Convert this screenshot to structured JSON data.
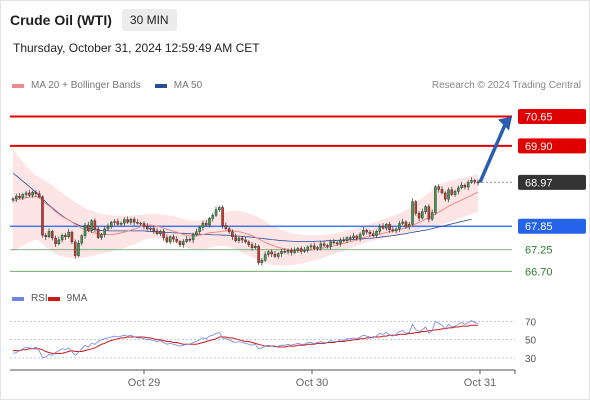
{
  "header": {
    "title": "Crude Oil (WTI)",
    "interval": "30 MIN"
  },
  "datetime": "Thursday, October 31, 2024 12:59:49 AM CET",
  "legend": {
    "ma20": "MA 20 + Bollinger Bands",
    "ma50": "MA 50"
  },
  "credit": "Research © 2024 Trading Central",
  "rsi_legend": {
    "rsi": "RSI",
    "ma": "9MA"
  },
  "colors": {
    "resistance": "#e00000",
    "support": "#2563eb",
    "support_minor": "#5aa05a",
    "last_price": "#333333",
    "ma20": "#f08a8a",
    "ma50": "#2a4d9a",
    "rsi": "#6f84e0",
    "rsi_ma": "#d01818",
    "bollinger": "#fde2e2",
    "target_arrow": "#2a5db0"
  },
  "chart_data": [
    {
      "type": "candlestick",
      "ylim": [
        66.35,
        71.2
      ],
      "x_ticks": [
        "Oct 29",
        "Oct 30",
        "Oct 31"
      ],
      "levels": [
        {
          "value": 70.65,
          "label": "70.65",
          "kind": "resistance"
        },
        {
          "value": 69.9,
          "label": "69.90",
          "kind": "resistance"
        },
        {
          "value": 68.97,
          "label": "68.97",
          "kind": "last_price"
        },
        {
          "value": 67.85,
          "label": "67.85",
          "kind": "support"
        },
        {
          "value": 67.25,
          "label": "67.25",
          "kind": "support_minor"
        },
        {
          "value": 66.7,
          "label": "66.70",
          "kind": "support_minor"
        }
      ],
      "close": [
        68.55,
        68.62,
        68.58,
        68.66,
        68.7,
        68.64,
        68.72,
        68.68,
        68.6,
        67.62,
        67.58,
        67.72,
        67.55,
        67.4,
        67.5,
        67.62,
        67.58,
        67.7,
        67.45,
        67.1,
        67.42,
        67.61,
        67.88,
        67.74,
        67.99,
        67.78,
        67.56,
        67.64,
        67.78,
        67.84,
        67.95,
        67.97,
        67.9,
        67.93,
        68.02,
        67.95,
        68.03,
        67.95,
        67.93,
        67.92,
        67.85,
        67.78,
        67.8,
        67.73,
        67.66,
        67.72,
        67.56,
        67.45,
        67.58,
        67.52,
        67.46,
        67.38,
        67.46,
        67.52,
        67.5,
        67.63,
        67.71,
        67.82,
        67.93,
        67.88,
        68.05,
        68.13,
        68.27,
        68.33,
        67.87,
        67.79,
        67.71,
        67.58,
        67.48,
        67.55,
        67.5,
        67.45,
        67.38,
        67.3,
        67.34,
        66.92,
        66.98,
        67.13,
        67.2,
        67.14,
        67.08,
        67.15,
        67.21,
        67.19,
        67.24,
        67.18,
        67.23,
        67.28,
        67.21,
        67.24,
        67.32,
        67.35,
        67.28,
        67.31,
        67.4,
        67.36,
        67.34,
        67.45,
        67.43,
        67.41,
        67.5,
        67.48,
        67.56,
        67.55,
        67.6,
        67.54,
        67.64,
        67.75,
        67.7,
        67.66,
        67.61,
        67.72,
        67.85,
        67.8,
        67.9,
        67.76,
        67.73,
        67.78,
        67.92,
        67.96,
        67.84,
        67.9,
        68.48,
        68.18,
        68.06,
        68.22,
        68.35,
        68.03,
        68.2,
        68.86,
        68.79,
        68.7,
        68.54,
        68.78,
        68.66,
        68.74,
        68.83,
        68.9,
        68.85,
        68.97,
        69.02,
        68.98,
        68.97
      ],
      "ma20": [
        68.5,
        68.52,
        68.54,
        68.56,
        68.58,
        68.59,
        68.6,
        68.61,
        68.58,
        68.5,
        68.43,
        68.37,
        68.3,
        68.22,
        68.16,
        68.1,
        68.05,
        68.01,
        67.96,
        67.9,
        67.85,
        67.8,
        67.76,
        67.73,
        67.7,
        67.68,
        67.66,
        67.65,
        67.64,
        67.64,
        67.64,
        67.65,
        67.66,
        67.68,
        67.7,
        67.72,
        67.75,
        67.78,
        67.8,
        67.84,
        67.87,
        67.88,
        67.88,
        67.87,
        67.85,
        67.83,
        67.8,
        67.77,
        67.75,
        67.72,
        67.7,
        67.67,
        67.64,
        67.62,
        67.6,
        67.6,
        67.6,
        67.62,
        67.64,
        67.66,
        67.68,
        67.69,
        67.7,
        67.71,
        67.72,
        67.73,
        67.74,
        67.73,
        67.72,
        67.71,
        67.69,
        67.67,
        67.64,
        67.61,
        67.57,
        67.53,
        67.48,
        67.44,
        67.4,
        67.37,
        67.34,
        67.31,
        67.29,
        67.27,
        67.25,
        67.24,
        67.23,
        67.22,
        67.22,
        67.22,
        67.23,
        67.24,
        67.25,
        67.26,
        67.28,
        67.3,
        67.31,
        67.33,
        67.35,
        67.37,
        67.39,
        67.41,
        67.44,
        67.46,
        67.48,
        67.51,
        67.53,
        67.56,
        67.58,
        67.6,
        67.62,
        67.63,
        67.65,
        67.67,
        67.69,
        67.71,
        67.73,
        67.75,
        67.77,
        67.79,
        67.81,
        67.83,
        67.87,
        67.91,
        67.95,
        67.99,
        68.03,
        68.07,
        68.11,
        68.16,
        68.21,
        68.26,
        68.31,
        68.36,
        68.4,
        68.44,
        68.48,
        68.52,
        68.56,
        68.6,
        68.64,
        68.68,
        68.72
      ],
      "bb_upper": [
        69.8,
        69.7,
        69.6,
        69.5,
        69.4,
        69.31,
        69.22,
        69.15,
        69.1,
        69.05,
        69.0,
        68.95,
        68.9,
        68.83,
        68.76,
        68.7,
        68.64,
        68.58,
        68.52,
        68.46,
        68.41,
        68.36,
        68.32,
        68.28,
        68.25,
        68.22,
        68.19,
        68.17,
        68.15,
        68.14,
        68.13,
        68.12,
        68.12,
        68.12,
        68.12,
        68.12,
        68.12,
        68.13,
        68.13,
        68.14,
        68.15,
        68.16,
        68.17,
        68.17,
        68.17,
        68.16,
        68.15,
        68.14,
        68.12,
        68.1,
        68.08,
        68.06,
        68.04,
        68.02,
        68.0,
        67.99,
        67.99,
        68.0,
        68.02,
        68.04,
        68.07,
        68.1,
        68.13,
        68.17,
        68.2,
        68.22,
        68.24,
        68.25,
        68.25,
        68.24,
        68.23,
        68.21,
        68.18,
        68.15,
        68.12,
        68.08,
        68.03,
        67.98,
        67.93,
        67.88,
        67.84,
        67.8,
        67.76,
        67.73,
        67.7,
        67.68,
        67.66,
        67.65,
        67.64,
        67.63,
        67.62,
        67.62,
        67.62,
        67.62,
        67.62,
        67.63,
        67.64,
        67.65,
        67.66,
        67.68,
        67.7,
        67.72,
        67.74,
        67.76,
        67.78,
        67.8,
        67.82,
        67.85,
        67.88,
        67.91,
        67.94,
        67.97,
        68.0,
        68.03,
        68.06,
        68.09,
        68.12,
        68.15,
        68.18,
        68.22,
        68.26,
        68.31,
        68.38,
        68.45,
        68.52,
        68.58,
        68.64,
        68.7,
        68.76,
        68.84,
        68.9,
        68.94,
        68.97,
        69.0,
        69.02,
        69.04,
        69.06,
        69.08,
        69.1,
        69.12,
        69.14,
        69.16,
        69.18
      ],
      "bb_lower": [
        67.2,
        67.25,
        67.3,
        67.35,
        67.4,
        67.44,
        67.48,
        67.5,
        67.48,
        67.4,
        67.32,
        67.26,
        67.2,
        67.14,
        67.1,
        67.08,
        67.06,
        67.05,
        67.04,
        67.03,
        67.03,
        67.04,
        67.05,
        67.07,
        67.09,
        67.11,
        67.13,
        67.15,
        67.17,
        67.19,
        67.21,
        67.23,
        67.25,
        67.27,
        67.3,
        67.33,
        67.36,
        67.39,
        67.42,
        67.46,
        67.5,
        67.52,
        67.53,
        67.54,
        67.54,
        67.53,
        67.51,
        67.48,
        67.45,
        67.42,
        67.39,
        67.36,
        67.33,
        67.3,
        67.28,
        67.27,
        67.26,
        67.26,
        67.27,
        67.28,
        67.3,
        67.32,
        67.34,
        67.35,
        67.35,
        67.34,
        67.32,
        67.29,
        67.26,
        67.22,
        67.18,
        67.14,
        67.1,
        67.06,
        67.02,
        66.98,
        66.94,
        66.91,
        66.88,
        66.86,
        66.85,
        66.84,
        66.84,
        66.84,
        66.85,
        66.86,
        66.87,
        66.88,
        66.9,
        66.92,
        66.94,
        66.96,
        66.98,
        67.0,
        67.02,
        67.05,
        67.08,
        67.11,
        67.14,
        67.17,
        67.2,
        67.23,
        67.26,
        67.29,
        67.32,
        67.35,
        67.38,
        67.41,
        67.44,
        67.46,
        67.48,
        67.5,
        67.52,
        67.54,
        67.56,
        67.58,
        67.6,
        67.62,
        67.64,
        67.66,
        67.68,
        67.7,
        67.72,
        67.74,
        67.76,
        67.78,
        67.8,
        67.82,
        67.84,
        67.86,
        67.88,
        67.9,
        67.92,
        67.95,
        67.98,
        68.01,
        68.04,
        68.07,
        68.1,
        68.13,
        68.16,
        68.19,
        68.22
      ],
      "ma50": [
        69.2,
        69.14,
        69.07,
        69.0,
        68.93,
        68.86,
        68.79,
        68.71,
        68.63,
        68.55,
        68.47,
        68.39,
        68.32,
        68.25,
        68.18,
        68.12,
        68.06,
        68.01,
        67.96,
        67.92,
        67.88,
        67.85,
        67.82,
        67.8,
        67.78,
        67.76,
        67.75,
        67.74,
        67.74,
        67.73,
        67.73,
        67.73,
        67.73,
        67.73,
        67.73,
        67.73,
        67.73,
        67.73,
        67.73,
        67.73,
        67.73,
        67.72,
        67.72,
        67.71,
        67.71,
        67.7,
        67.7,
        67.69,
        67.69,
        67.68,
        67.68,
        67.67,
        67.67,
        67.66,
        67.66,
        67.65,
        67.65,
        67.65,
        67.64,
        67.64,
        67.64,
        67.63,
        67.63,
        67.63,
        67.62,
        67.62,
        67.61,
        67.61,
        67.6,
        67.6,
        67.59,
        67.58,
        67.58,
        67.57,
        67.56,
        67.55,
        67.54,
        67.53,
        67.52,
        67.51,
        67.5,
        67.49,
        67.48,
        67.48,
        67.47,
        67.47,
        67.46,
        67.46,
        67.46,
        67.46,
        67.46,
        67.46,
        67.46,
        67.47,
        67.47,
        67.47,
        67.48,
        67.48,
        67.48,
        67.49,
        67.49,
        67.5,
        67.5,
        67.51,
        67.51,
        67.52,
        67.52,
        67.53,
        67.54,
        67.54,
        67.55,
        67.56,
        67.57,
        67.58,
        67.59,
        67.6,
        67.61,
        67.62,
        67.64,
        67.65,
        67.66,
        67.68,
        67.69,
        67.71,
        67.72,
        67.74,
        67.75,
        67.77,
        67.79,
        67.81,
        67.83,
        67.85,
        67.87,
        67.89,
        67.91,
        67.93,
        67.95,
        67.97,
        67.99,
        68.01,
        68.03
      ]
    },
    {
      "type": "line",
      "y_ticks": [
        70,
        50,
        30
      ],
      "ylim": [
        20,
        75
      ],
      "rsi": [
        35,
        36,
        38,
        40,
        42,
        41,
        40,
        42,
        38,
        30,
        31,
        34,
        33,
        36,
        38,
        40,
        39,
        41,
        37,
        33,
        36,
        40,
        44,
        42,
        46,
        45,
        48,
        50,
        51,
        52,
        53,
        54,
        53,
        54,
        55,
        54,
        55,
        53,
        52,
        52,
        51,
        50,
        50,
        49,
        48,
        49,
        47,
        45,
        46,
        45,
        44,
        43,
        44,
        45,
        45,
        47,
        48,
        50,
        52,
        51,
        54,
        55,
        57,
        58,
        52,
        51,
        50,
        48,
        47,
        48,
        47,
        46,
        45,
        44,
        45,
        40,
        41,
        43,
        44,
        43,
        42,
        43,
        44,
        44,
        45,
        44,
        45,
        46,
        45,
        45,
        47,
        47,
        46,
        47,
        48,
        47,
        47,
        49,
        48,
        48,
        50,
        49,
        51,
        51,
        52,
        51,
        53,
        55,
        54,
        53,
        52,
        54,
        57,
        56,
        58,
        55,
        54,
        56,
        59,
        60,
        57,
        58,
        67,
        61,
        59,
        61,
        64,
        57,
        60,
        70,
        68,
        66,
        62,
        67,
        64,
        65,
        67,
        69,
        67,
        69,
        71,
        69,
        68
      ],
      "rsi_ma": [
        38,
        38,
        38,
        39,
        39,
        40,
        40,
        40,
        40,
        39,
        37,
        36,
        35,
        35,
        35,
        35,
        36,
        37,
        38,
        37,
        37,
        37,
        38,
        39,
        40,
        41,
        43,
        45,
        46,
        48,
        49,
        50,
        51,
        52,
        52,
        53,
        53,
        53,
        53,
        53,
        53,
        52,
        52,
        51,
        50,
        50,
        49,
        48,
        48,
        47,
        47,
        46,
        45,
        45,
        45,
        45,
        45,
        46,
        47,
        48,
        49,
        50,
        51,
        53,
        53,
        53,
        52,
        52,
        51,
        50,
        49,
        48,
        48,
        47,
        46,
        45,
        44,
        43,
        43,
        43,
        43,
        42,
        42,
        42,
        43,
        43,
        43,
        44,
        44,
        44,
        45,
        45,
        45,
        46,
        46,
        46,
        47,
        47,
        47,
        48,
        48,
        48,
        49,
        49,
        50,
        50,
        51,
        51,
        52,
        52,
        53,
        53,
        53,
        54,
        54,
        55,
        55,
        55,
        56,
        56,
        56,
        57,
        57,
        58,
        58,
        59,
        59,
        60,
        60,
        61,
        61,
        62,
        62,
        63,
        63,
        64,
        64,
        65,
        65,
        65,
        66,
        66,
        66
      ]
    }
  ]
}
